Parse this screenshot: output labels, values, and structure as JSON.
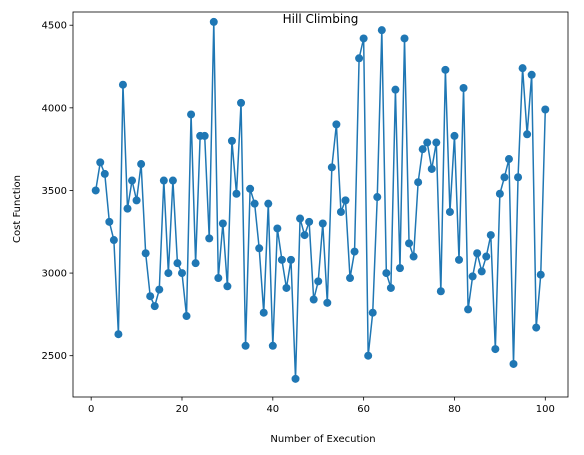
{
  "chart_data": {
    "type": "line",
    "title": "Hill Climbing",
    "xlabel": "Number of Execution",
    "ylabel": "Cost Function",
    "xlim": [
      -4,
      105
    ],
    "ylim": [
      2250,
      4580
    ],
    "xticks": [
      0,
      20,
      40,
      60,
      80,
      100
    ],
    "yticks": [
      2500,
      3000,
      3500,
      4000,
      4500
    ],
    "grid": false,
    "color": "#1f77b4",
    "markers": true,
    "series": [
      {
        "x": [
          1,
          2,
          3,
          4,
          5,
          6,
          7,
          8,
          9,
          10,
          11,
          12,
          13,
          14,
          15,
          16,
          17,
          18,
          19,
          20,
          21,
          22,
          23,
          24,
          25,
          26,
          27,
          28,
          29,
          30,
          31,
          32,
          33,
          34,
          35,
          36,
          37,
          38,
          39,
          40,
          41,
          42,
          43,
          44,
          45,
          46,
          47,
          48,
          49,
          50,
          51,
          52,
          53,
          54,
          55,
          56,
          57,
          58,
          59,
          60,
          61,
          62,
          63,
          64,
          65,
          66,
          67,
          68,
          69,
          70,
          71,
          72,
          73,
          74,
          75,
          76,
          77,
          78,
          79,
          80,
          81,
          82,
          83,
          84,
          85,
          86,
          87,
          88,
          89,
          90,
          91,
          92,
          93,
          94,
          95,
          96,
          97,
          98,
          99,
          100
        ],
        "values": [
          3500,
          3670,
          3600,
          3310,
          3200,
          2630,
          4140,
          3390,
          3560,
          3440,
          3660,
          3120,
          2860,
          2800,
          2900,
          3560,
          3000,
          3560,
          3060,
          3000,
          2740,
          3960,
          3060,
          3830,
          3830,
          3210,
          4520,
          2970,
          3300,
          2920,
          3800,
          3480,
          4030,
          2560,
          3510,
          3420,
          3150,
          2760,
          3420,
          2560,
          3270,
          3080,
          2910,
          3080,
          2360,
          3330,
          3230,
          3310,
          2840,
          2950,
          3300,
          2820,
          3640,
          3900,
          3370,
          3440,
          2970,
          3130,
          4300,
          4420,
          2500,
          2760,
          3460,
          4470,
          3000,
          2910,
          4110,
          3030,
          4420,
          3180,
          3100,
          3550,
          3750,
          3790,
          3630,
          3790,
          2890,
          4230,
          3370,
          3830,
          3080,
          4120,
          2780,
          2980,
          3120,
          3010,
          3100,
          3230,
          2540,
          3480,
          3580,
          3690,
          2450,
          3580,
          4240,
          3840,
          4200,
          2670,
          2990,
          3990
        ]
      }
    ]
  }
}
